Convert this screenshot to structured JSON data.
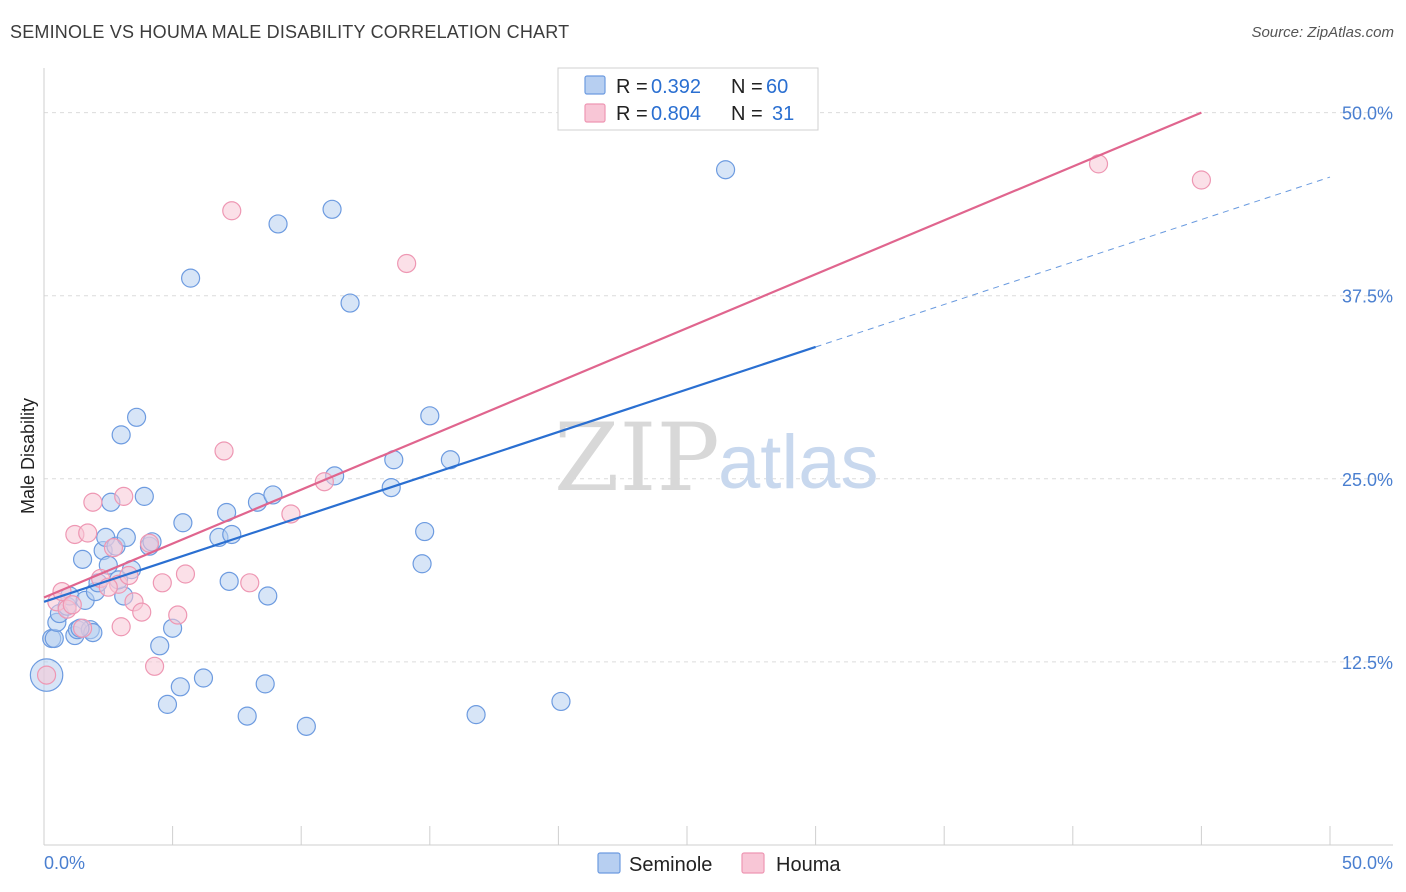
{
  "header": {
    "title": "SEMINOLE VS HOUMA MALE DISABILITY CORRELATION CHART",
    "source": "Source: ZipAtlas.com"
  },
  "watermark": {
    "zip": "ZIP",
    "atlas": "atlas"
  },
  "stats_legend": {
    "rows": [
      {
        "r_label": "R =",
        "r_value": "0.392",
        "n_label": "N =",
        "n_value": "60"
      },
      {
        "r_label": "R =",
        "r_value": "0.804",
        "n_label": "N =",
        "n_value": "31"
      }
    ]
  },
  "colors": {
    "seminole_fill": "#b7cff1",
    "seminole_stroke": "#6d9be0",
    "seminole_line": "#2a6fd1",
    "houma_fill": "#f8c6d6",
    "houma_stroke": "#ee97b3",
    "houma_line": "#e0658e",
    "tick_text": "#4a7fd0",
    "grid": "#dcdcdc"
  },
  "chart_data": {
    "type": "scatter",
    "title": "SEMINOLE VS HOUMA MALE DISABILITY CORRELATION CHART",
    "xlabel": "",
    "ylabel": "Male Disability",
    "xlim": [
      0,
      50
    ],
    "ylim": [
      0,
      52.5
    ],
    "x_tick_labels": [
      "0.0%",
      "50.0%"
    ],
    "y_ticks": [
      12.5,
      25.0,
      37.5,
      50.0
    ],
    "y_tick_labels": [
      "12.5%",
      "25.0%",
      "37.5%",
      "50.0%"
    ],
    "legend": [
      "Seminole",
      "Houma"
    ],
    "series": [
      {
        "name": "Seminole",
        "r": 0.392,
        "n": 60,
        "trend": {
          "x0": 0,
          "y0": 16.6,
          "x1": 30,
          "y1": 34.0,
          "dashed_to_x": 50,
          "dashed_to_y": 45.6
        },
        "points": [
          [
            0.1,
            11.6,
            1.8
          ],
          [
            0.3,
            14.1,
            1.0
          ],
          [
            0.4,
            14.1,
            1.0
          ],
          [
            0.5,
            15.2,
            1.0
          ],
          [
            0.6,
            15.8,
            1.0
          ],
          [
            0.9,
            16.3,
            1.0
          ],
          [
            1.0,
            17.0,
            1.0
          ],
          [
            1.2,
            14.3,
            1.0
          ],
          [
            1.3,
            14.7,
            1.0
          ],
          [
            1.5,
            19.5,
            1.0
          ],
          [
            1.6,
            16.7,
            1.0
          ],
          [
            1.8,
            14.7,
            1.0
          ],
          [
            1.9,
            14.5,
            1.0
          ],
          [
            2.0,
            17.3,
            1.0
          ],
          [
            2.1,
            17.9,
            1.0
          ],
          [
            2.3,
            20.1,
            1.0
          ],
          [
            2.4,
            21.0,
            1.0
          ],
          [
            2.5,
            19.1,
            1.0
          ],
          [
            2.6,
            23.4,
            1.0
          ],
          [
            2.8,
            20.4,
            1.0
          ],
          [
            3.0,
            28.0,
            1.0
          ],
          [
            3.1,
            17.0,
            1.0
          ],
          [
            3.2,
            21.0,
            1.0
          ],
          [
            3.4,
            18.8,
            1.0
          ],
          [
            3.6,
            29.2,
            1.0
          ],
          [
            3.9,
            23.8,
            1.0
          ],
          [
            4.1,
            20.4,
            1.0
          ],
          [
            4.5,
            13.6,
            1.0
          ],
          [
            4.8,
            9.6,
            1.0
          ],
          [
            5.0,
            14.8,
            1.0
          ],
          [
            5.3,
            10.8,
            1.0
          ],
          [
            5.4,
            22.0,
            1.0
          ],
          [
            5.7,
            38.7,
            1.0
          ],
          [
            6.2,
            11.4,
            1.0
          ],
          [
            6.8,
            21.0,
            1.0
          ],
          [
            7.1,
            22.7,
            1.0
          ],
          [
            7.2,
            18.0,
            1.0
          ],
          [
            7.3,
            21.2,
            1.0
          ],
          [
            7.9,
            8.8,
            1.0
          ],
          [
            8.3,
            23.4,
            1.0
          ],
          [
            8.6,
            11.0,
            1.0
          ],
          [
            8.7,
            17.0,
            1.0
          ],
          [
            8.9,
            23.9,
            1.0
          ],
          [
            9.1,
            42.4,
            1.0
          ],
          [
            10.2,
            8.1,
            1.0
          ],
          [
            11.2,
            43.4,
            1.0
          ],
          [
            11.3,
            25.2,
            1.0
          ],
          [
            11.9,
            37.0,
            1.0
          ],
          [
            13.5,
            24.4,
            1.0
          ],
          [
            13.6,
            26.3,
            1.0
          ],
          [
            14.7,
            19.2,
            1.0
          ],
          [
            14.8,
            21.4,
            1.0
          ],
          [
            15.0,
            29.3,
            1.0
          ],
          [
            15.8,
            26.3,
            1.0
          ],
          [
            16.8,
            8.9,
            1.0
          ],
          [
            20.1,
            9.8,
            1.0
          ],
          [
            26.5,
            46.1,
            1.0
          ],
          [
            1.4,
            14.8,
            1.0
          ],
          [
            2.9,
            18.1,
            1.0
          ],
          [
            4.2,
            20.7,
            1.0
          ]
        ]
      },
      {
        "name": "Houma",
        "r": 0.804,
        "n": 31,
        "trend": {
          "x0": 0,
          "y0": 16.9,
          "x1": 45,
          "y1": 50.0
        },
        "points": [
          [
            0.1,
            11.6,
            1.0
          ],
          [
            0.5,
            16.6,
            1.0
          ],
          [
            0.7,
            17.3,
            1.0
          ],
          [
            0.9,
            16.1,
            1.0
          ],
          [
            1.2,
            21.2,
            1.0
          ],
          [
            1.5,
            14.8,
            1.0
          ],
          [
            1.7,
            21.3,
            1.0
          ],
          [
            1.9,
            23.4,
            1.0
          ],
          [
            2.2,
            18.2,
            1.0
          ],
          [
            2.7,
            20.3,
            1.0
          ],
          [
            2.9,
            17.8,
            1.0
          ],
          [
            3.1,
            23.8,
            1.0
          ],
          [
            3.3,
            18.4,
            1.0
          ],
          [
            3.5,
            16.6,
            1.0
          ],
          [
            3.8,
            15.9,
            1.0
          ],
          [
            4.1,
            20.6,
            1.0
          ],
          [
            4.3,
            12.2,
            1.0
          ],
          [
            4.6,
            17.9,
            1.0
          ],
          [
            5.2,
            15.7,
            1.0
          ],
          [
            5.5,
            18.5,
            1.0
          ],
          [
            7.0,
            26.9,
            1.0
          ],
          [
            7.3,
            43.3,
            1.0
          ],
          [
            8.0,
            17.9,
            1.0
          ],
          [
            9.6,
            22.6,
            1.0
          ],
          [
            10.9,
            24.8,
            1.0
          ],
          [
            14.1,
            39.7,
            1.0
          ],
          [
            41.0,
            46.5,
            1.0
          ],
          [
            45.0,
            45.4,
            1.0
          ],
          [
            2.5,
            17.6,
            1.0
          ],
          [
            1.1,
            16.4,
            1.0
          ],
          [
            3.0,
            14.9,
            1.0
          ]
        ]
      }
    ]
  },
  "bottom_legend": {
    "items": [
      "Seminole",
      "Houma"
    ]
  }
}
